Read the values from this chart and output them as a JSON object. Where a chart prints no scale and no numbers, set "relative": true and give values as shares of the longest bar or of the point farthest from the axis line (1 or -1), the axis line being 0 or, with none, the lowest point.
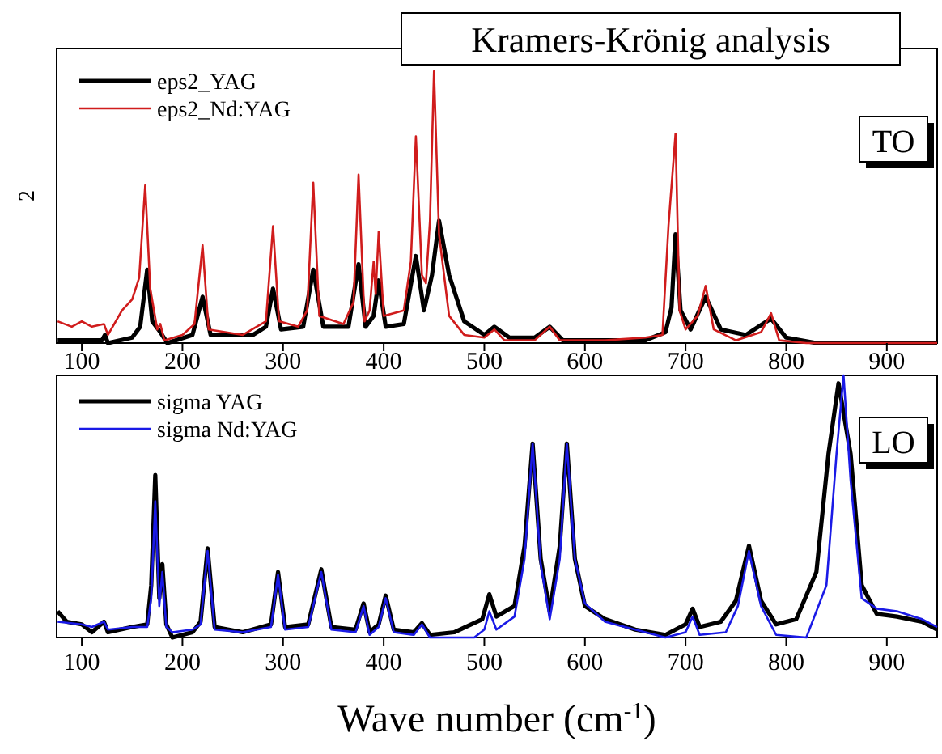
{
  "chart_data": [
    {
      "type": "line",
      "title": "Kramers-Krönig analysis",
      "ylabel": "2",
      "relative": true,
      "xlim": [
        75,
        950
      ],
      "xticks": [
        100,
        200,
        300,
        400,
        500,
        600,
        700,
        800,
        900
      ],
      "tick_labels": "x",
      "legend": "top left",
      "annotations": [
        "TO"
      ],
      "series": [
        {
          "name": "eps2_YAG",
          "color": "#000000",
          "x": [
            76,
            120,
            123,
            126,
            150,
            158,
            165,
            170,
            178,
            185,
            210,
            220,
            228,
            270,
            283,
            290,
            298,
            320,
            330,
            340,
            365,
            375,
            382,
            390,
            395,
            402,
            420,
            432,
            440,
            448,
            455,
            465,
            480,
            500,
            510,
            525,
            550,
            565,
            578,
            660,
            680,
            686,
            690,
            695,
            705,
            720,
            735,
            760,
            785,
            800,
            830,
            950
          ],
          "values": [
            0.01,
            0.01,
            0.03,
            0.0,
            0.02,
            0.06,
            0.27,
            0.08,
            0.04,
            0.0,
            0.03,
            0.17,
            0.03,
            0.03,
            0.06,
            0.2,
            0.05,
            0.06,
            0.27,
            0.06,
            0.06,
            0.29,
            0.06,
            0.1,
            0.23,
            0.06,
            0.07,
            0.32,
            0.12,
            0.25,
            0.45,
            0.25,
            0.08,
            0.03,
            0.06,
            0.02,
            0.02,
            0.06,
            0.01,
            0.01,
            0.04,
            0.13,
            0.4,
            0.12,
            0.05,
            0.17,
            0.05,
            0.03,
            0.09,
            0.02,
            0.0,
            0.0
          ]
        },
        {
          "name": "eps2_Nd:YAG",
          "color": "#d01c1c",
          "x": [
            76,
            90,
            100,
            110,
            122,
            126,
            140,
            150,
            157,
            163,
            168,
            175,
            178,
            182,
            200,
            212,
            220,
            226,
            260,
            283,
            290,
            296,
            315,
            324,
            330,
            336,
            360,
            370,
            375,
            381,
            386,
            390,
            392,
            395,
            400,
            420,
            427,
            432,
            438,
            442,
            446,
            450,
            455,
            465,
            480,
            500,
            510,
            520,
            550,
            565,
            575,
            620,
            660,
            677,
            683,
            690,
            694,
            700,
            712,
            720,
            728,
            750,
            775,
            785,
            793,
            820,
            950
          ],
          "values": [
            0.08,
            0.06,
            0.08,
            0.06,
            0.07,
            0.03,
            0.12,
            0.16,
            0.24,
            0.58,
            0.2,
            0.05,
            0.07,
            0.01,
            0.03,
            0.07,
            0.36,
            0.05,
            0.03,
            0.08,
            0.43,
            0.08,
            0.06,
            0.12,
            0.59,
            0.1,
            0.07,
            0.15,
            0.62,
            0.08,
            0.12,
            0.3,
            0.18,
            0.41,
            0.1,
            0.12,
            0.3,
            0.76,
            0.25,
            0.22,
            0.45,
            1.0,
            0.4,
            0.1,
            0.03,
            0.02,
            0.05,
            0.01,
            0.01,
            0.06,
            0.01,
            0.01,
            0.02,
            0.03,
            0.43,
            0.77,
            0.12,
            0.05,
            0.1,
            0.21,
            0.05,
            0.01,
            0.04,
            0.11,
            0.01,
            0.0,
            0.0
          ]
        }
      ]
    },
    {
      "type": "line",
      "xlabel": "Wave number (cm$^{-1}$)",
      "relative": true,
      "xlim": [
        75,
        950
      ],
      "xticks": [
        100,
        200,
        300,
        400,
        500,
        600,
        700,
        800,
        900
      ],
      "tick_labels": "x",
      "legend": "top left",
      "annotations": [
        "LO"
      ],
      "series": [
        {
          "name": "sigma YAG",
          "color": "#000000",
          "x": [
            76,
            85,
            100,
            110,
            122,
            126,
            150,
            165,
            169,
            173,
            177,
            180,
            184,
            190,
            210,
            218,
            225,
            232,
            260,
            288,
            295,
            302,
            325,
            338,
            348,
            372,
            380,
            386,
            395,
            402,
            410,
            430,
            438,
            446,
            470,
            498,
            505,
            512,
            530,
            540,
            548,
            556,
            565,
            575,
            582,
            590,
            600,
            620,
            650,
            680,
            700,
            707,
            714,
            735,
            750,
            763,
            775,
            790,
            810,
            830,
            842,
            852,
            864,
            875,
            890,
            910,
            935,
            950
          ],
          "values": [
            0.1,
            0.06,
            0.05,
            0.02,
            0.06,
            0.02,
            0.04,
            0.05,
            0.2,
            0.62,
            0.15,
            0.28,
            0.05,
            0.0,
            0.02,
            0.06,
            0.34,
            0.04,
            0.02,
            0.05,
            0.25,
            0.04,
            0.05,
            0.26,
            0.04,
            0.03,
            0.13,
            0.02,
            0.05,
            0.16,
            0.03,
            0.02,
            0.055,
            0.01,
            0.02,
            0.07,
            0.165,
            0.08,
            0.12,
            0.35,
            0.74,
            0.3,
            0.1,
            0.35,
            0.74,
            0.3,
            0.12,
            0.07,
            0.03,
            0.01,
            0.05,
            0.11,
            0.04,
            0.06,
            0.14,
            0.35,
            0.14,
            0.05,
            0.07,
            0.25,
            0.7,
            0.97,
            0.7,
            0.2,
            0.09,
            0.08,
            0.06,
            0.03
          ]
        },
        {
          "name": "sigma Nd:YAG",
          "color": "#1a1ae6",
          "x": [
            76,
            100,
            110,
            122,
            126,
            150,
            165,
            169,
            173,
            177,
            180,
            184,
            190,
            210,
            218,
            225,
            232,
            260,
            288,
            295,
            302,
            325,
            338,
            348,
            372,
            380,
            386,
            395,
            402,
            410,
            430,
            438,
            446,
            490,
            500,
            505,
            512,
            530,
            540,
            548,
            556,
            565,
            575,
            582,
            590,
            600,
            620,
            650,
            680,
            700,
            707,
            714,
            740,
            752,
            763,
            775,
            790,
            820,
            840,
            850,
            857,
            864,
            875,
            890,
            910,
            935,
            950
          ],
          "values": [
            0.06,
            0.05,
            0.04,
            0.06,
            0.03,
            0.04,
            0.04,
            0.15,
            0.52,
            0.12,
            0.25,
            0.04,
            0.02,
            0.03,
            0.05,
            0.33,
            0.03,
            0.02,
            0.04,
            0.24,
            0.03,
            0.04,
            0.25,
            0.03,
            0.02,
            0.12,
            0.01,
            0.04,
            0.15,
            0.02,
            0.01,
            0.05,
            0.0,
            0.0,
            0.03,
            0.1,
            0.03,
            0.08,
            0.3,
            0.74,
            0.28,
            0.07,
            0.3,
            0.74,
            0.3,
            0.13,
            0.06,
            0.03,
            0.0,
            0.02,
            0.08,
            0.01,
            0.02,
            0.12,
            0.33,
            0.12,
            0.01,
            0.0,
            0.2,
            0.7,
            1.0,
            0.6,
            0.15,
            0.11,
            0.1,
            0.07,
            0.04
          ]
        }
      ]
    }
  ]
}
